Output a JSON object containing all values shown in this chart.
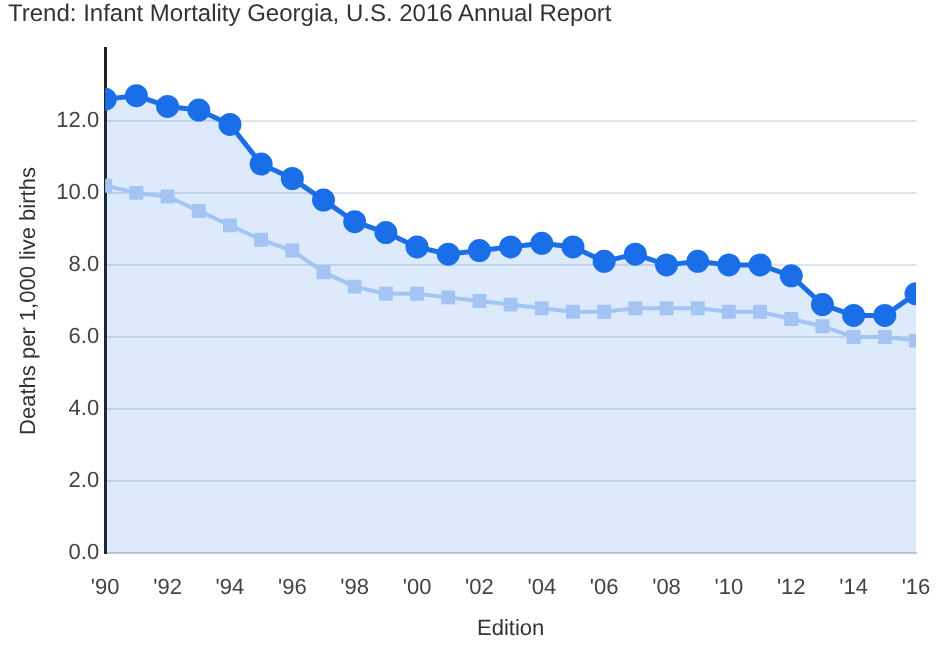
{
  "chart_data": {
    "type": "line",
    "title": "Trend: Infant Mortality Georgia, U.S. 2016 Annual Report",
    "xlabel": "Edition",
    "ylabel": "Deaths per 1,000 live births",
    "x": [
      1990,
      1991,
      1992,
      1993,
      1994,
      1995,
      1996,
      1997,
      1998,
      1999,
      2000,
      2001,
      2002,
      2003,
      2004,
      2005,
      2006,
      2007,
      2008,
      2009,
      2010,
      2011,
      2012,
      2013,
      2014,
      2015,
      2016
    ],
    "series": [
      {
        "type": "area",
        "color": "#1a6fe8",
        "marker": "circle",
        "values": [
          12.6,
          12.7,
          12.4,
          12.3,
          11.9,
          10.8,
          10.4,
          9.8,
          9.2,
          8.9,
          8.5,
          8.3,
          8.4,
          8.5,
          8.6,
          8.5,
          8.1,
          8.3,
          8.0,
          8.1,
          8.0,
          8.0,
          7.7,
          6.9,
          6.6,
          6.6,
          7.2
        ]
      },
      {
        "type": "line",
        "color": "#a4c4f4",
        "marker": "square",
        "values": [
          10.2,
          10.0,
          9.9,
          9.5,
          9.1,
          8.7,
          8.4,
          7.8,
          7.4,
          7.2,
          7.2,
          7.1,
          7.0,
          6.9,
          6.8,
          6.7,
          6.7,
          6.8,
          6.8,
          6.8,
          6.7,
          6.7,
          6.5,
          6.3,
          6.0,
          6.0,
          5.9
        ]
      }
    ],
    "xlim": [
      1990,
      2016
    ],
    "xticks": [
      {
        "value": 1990,
        "label": "'90"
      },
      {
        "value": 1992,
        "label": "'92"
      },
      {
        "value": 1994,
        "label": "'94"
      },
      {
        "value": 1996,
        "label": "'96"
      },
      {
        "value": 1998,
        "label": "'98"
      },
      {
        "value": 2000,
        "label": "'00"
      },
      {
        "value": 2002,
        "label": "'02"
      },
      {
        "value": 2004,
        "label": "'04"
      },
      {
        "value": 2006,
        "label": "'06"
      },
      {
        "value": 2008,
        "label": "'08"
      },
      {
        "value": 2010,
        "label": "'10"
      },
      {
        "value": 2012,
        "label": "'12"
      },
      {
        "value": 2014,
        "label": "'14"
      },
      {
        "value": 2016,
        "label": "'16"
      }
    ],
    "ylim": [
      0,
      14
    ],
    "yticks": [
      {
        "value": 0,
        "label": "0.0"
      },
      {
        "value": 2,
        "label": "2.0"
      },
      {
        "value": 4,
        "label": "4.0"
      },
      {
        "value": 6,
        "label": "6.0"
      },
      {
        "value": 8,
        "label": "8.0"
      },
      {
        "value": 10,
        "label": "10.0"
      },
      {
        "value": 12,
        "label": "12.0"
      }
    ],
    "grid": "y",
    "legend": false
  }
}
